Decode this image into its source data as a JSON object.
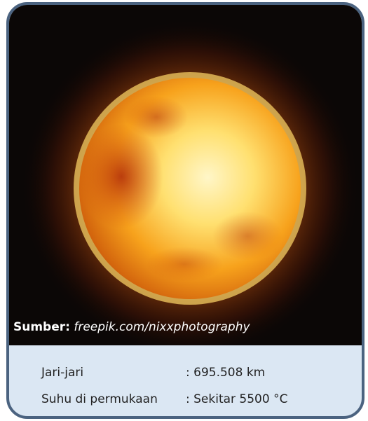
{
  "image": {
    "source_label": "Sumber:",
    "source": "freepik.com/nixxphotography"
  },
  "info": {
    "rows": [
      [
        "Jari-jari",
        ": 695.508 km"
      ],
      [
        "Suhu di permukaan",
        ": Sekitar 5500 °C"
      ]
    ]
  }
}
